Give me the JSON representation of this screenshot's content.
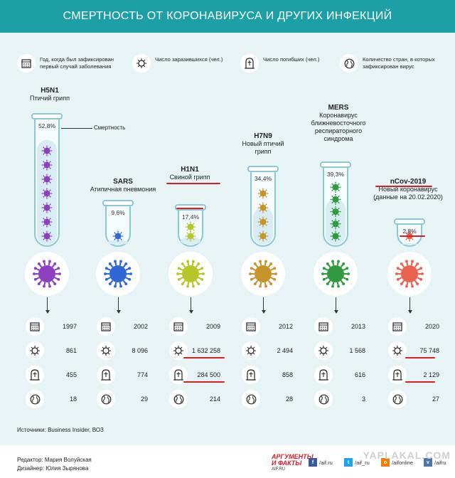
{
  "title": "СМЕРТНОСТЬ ОТ КОРОНАВИРУСА И ДРУГИХ ИНФЕКЦИЙ",
  "legend": {
    "year": "Год, когда был зафиксирован первый случай заболевания",
    "infected": "Число заразившихся (чел.)",
    "deaths": "Число погибших (чел.)",
    "countries": "Количество стран, в которых зафиксирован вирус"
  },
  "mortality_label": "Смертность",
  "viruses": [
    {
      "code": "H5N1",
      "name": "Птичий грипп",
      "pct": "52,8%",
      "year": "1997",
      "infected": "861",
      "deaths": "455",
      "countries": "18",
      "fill": 0.528,
      "color": "#8e3fc0"
    },
    {
      "code": "SARS",
      "name": "Атипичная пневмония",
      "pct": "9,6%",
      "year": "2002",
      "infected": "8 096",
      "deaths": "774",
      "countries": "29",
      "fill": 0.096,
      "color": "#2f67d4"
    },
    {
      "code": "H1N1",
      "name": "Свиной грипп",
      "pct": "17,4%",
      "year": "2009",
      "infected": "1 632 258",
      "deaths": "284 500",
      "countries": "214",
      "fill": 0.174,
      "color": "#b7c62a"
    },
    {
      "code": "H7N9",
      "name": "Новый птичий грипп",
      "pct": "34,4%",
      "year": "2012",
      "infected": "2 494",
      "deaths": "858",
      "countries": "28",
      "fill": 0.344,
      "color": "#c7932b"
    },
    {
      "code": "MERS",
      "name": "Коронавирус ближневосточного респираторного синдрома",
      "pct": "39,3%",
      "year": "2013",
      "infected": "1 568",
      "deaths": "616",
      "countries": "3",
      "fill": 0.393,
      "color": "#2f9a3e"
    },
    {
      "code": "nCov-2019",
      "name": "Новый коронавирус (данные на 20.02.2020)",
      "pct": "2,8%",
      "year": "2020",
      "infected": "75 748",
      "deaths": "2 129",
      "countries": "27",
      "fill": 0.028,
      "color": "#e8624f"
    }
  ],
  "source": "Источники: Business Insider, ВОЗ",
  "footer": {
    "editor": "Редактор: Мария Волуйская",
    "designer": "Дизайнер: Юлия Зырянова",
    "logo_line1": "АРГУМЕНТЫ",
    "logo_line2": "И ФАКТЫ",
    "logo_url": "AIF.RU",
    "social": [
      "/aif.ru",
      "/aif_ru",
      "/aifonline",
      "/aifru"
    ],
    "watermark": "YAPLAKAL.COM"
  },
  "colors": {
    "accent": "#1d9fa6",
    "highlight": "#d81f26",
    "background": "#e7f3f4"
  },
  "icons": [
    "calendar-icon",
    "virus-icon",
    "grave-icon",
    "globe-icon"
  ]
}
